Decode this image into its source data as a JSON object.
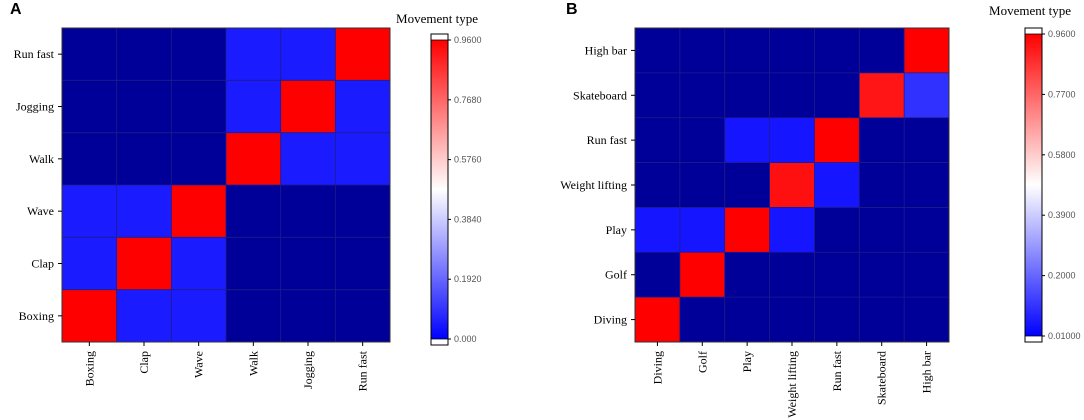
{
  "chart_data": [
    {
      "panel_label": "A",
      "type": "heatmap",
      "title": "",
      "xlabel": "",
      "ylabel": "",
      "x_categories": [
        "Boxing",
        "Clap",
        "Wave",
        "Walk",
        "Jogging",
        "Run fast"
      ],
      "y_categories_top_to_bottom": [
        "Run fast",
        "Jogging",
        "Walk",
        "Wave",
        "Clap",
        "Boxing"
      ],
      "values_top_to_bottom": [
        [
          0.0,
          0.0,
          0.0,
          0.05,
          0.05,
          0.96
        ],
        [
          0.0,
          0.0,
          0.0,
          0.05,
          0.96,
          0.05
        ],
        [
          0.0,
          0.0,
          0.0,
          0.96,
          0.05,
          0.05
        ],
        [
          0.05,
          0.05,
          0.96,
          0.0,
          0.0,
          0.0
        ],
        [
          0.05,
          0.96,
          0.05,
          0.0,
          0.0,
          0.0
        ],
        [
          0.96,
          0.05,
          0.05,
          0.0,
          0.0,
          0.0
        ]
      ],
      "colorbar": {
        "title": "Movement type",
        "range": [
          0.0,
          0.96
        ],
        "ticks": [
          0.96,
          0.768,
          0.576,
          0.384,
          0.192,
          0.0
        ],
        "tick_labels": [
          "0.9600",
          "0.7680",
          "0.5760",
          "0.3840",
          "0.1920",
          "0.000"
        ]
      }
    },
    {
      "panel_label": "B",
      "type": "heatmap",
      "title": "",
      "xlabel": "",
      "ylabel": "",
      "x_categories": [
        "Diving",
        "Golf",
        "Play",
        "Weight lifting",
        "Run fast",
        "Skateboard",
        "High bar"
      ],
      "y_categories_top_to_bottom": [
        "High bar",
        "Skateboard",
        "Run fast",
        "Weight lifting",
        "Play",
        "Golf",
        "Diving"
      ],
      "values_top_to_bottom": [
        [
          0.0,
          0.0,
          0.0,
          0.0,
          0.0,
          0.0,
          0.96
        ],
        [
          0.0,
          0.0,
          0.0,
          0.0,
          0.0,
          0.92,
          0.1
        ],
        [
          0.0,
          0.0,
          0.05,
          0.05,
          0.96,
          0.0,
          0.0
        ],
        [
          0.0,
          0.0,
          0.0,
          0.93,
          0.05,
          0.0,
          0.0
        ],
        [
          0.05,
          0.05,
          0.96,
          0.05,
          0.0,
          0.0,
          0.0
        ],
        [
          0.0,
          0.96,
          0.0,
          0.0,
          0.0,
          0.0,
          0.0
        ],
        [
          0.96,
          0.0,
          0.0,
          0.0,
          0.0,
          0.0,
          0.0
        ]
      ],
      "colorbar": {
        "title": "Movement type",
        "range": [
          0.01,
          0.96
        ],
        "ticks": [
          0.96,
          0.77,
          0.58,
          0.39,
          0.2,
          0.01
        ],
        "tick_labels": [
          "0.9600",
          "0.7700",
          "0.5800",
          "0.3900",
          "0.2000",
          "0.01000"
        ]
      }
    }
  ]
}
